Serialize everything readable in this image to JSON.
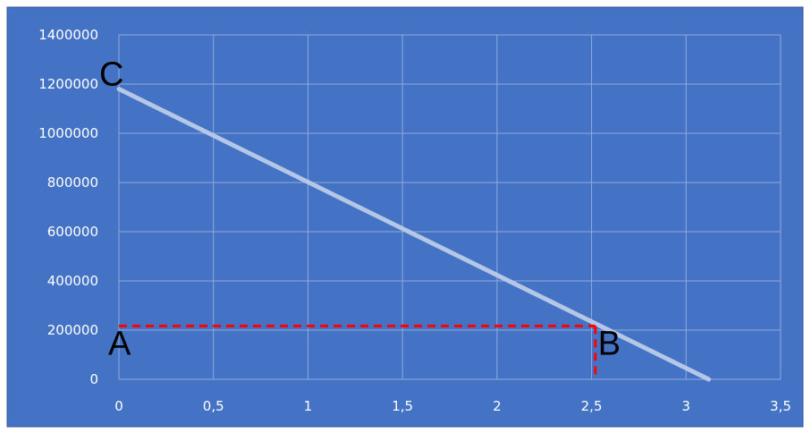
{
  "chart_data": {
    "type": "line",
    "title": "",
    "xlabel": "",
    "ylabel": "",
    "xlim": [
      0,
      3.5
    ],
    "ylim": [
      0,
      1400000
    ],
    "x_ticks": [
      "0",
      "0,5",
      "1",
      "1,5",
      "2",
      "2,5",
      "3",
      "3,5"
    ],
    "y_ticks": [
      "0",
      "200000",
      "400000",
      "600000",
      "800000",
      "1000000",
      "1200000",
      "1400000"
    ],
    "grid": true,
    "series": [
      {
        "x": [
          0,
          3.12
        ],
        "y": [
          1180000,
          0
        ]
      }
    ],
    "reference_lines": [
      {
        "from": [
          0,
          217000
        ],
        "to": [
          2.52,
          217000
        ],
        "style": "dashed"
      },
      {
        "from": [
          2.52,
          217000
        ],
        "to": [
          2.52,
          0
        ],
        "style": "dashed"
      }
    ],
    "annotations": [
      {
        "text": "A",
        "x": 0,
        "y": 217000
      },
      {
        "text": "B",
        "x": 2.52,
        "y": 217000
      },
      {
        "text": "C",
        "x": 0,
        "y": 1180000
      }
    ],
    "colors": {
      "background": "#4472c4",
      "frame": "#2f5597",
      "grid": "#8faadc",
      "line": "#b4c7e7",
      "dashed": "#ff0000"
    }
  }
}
